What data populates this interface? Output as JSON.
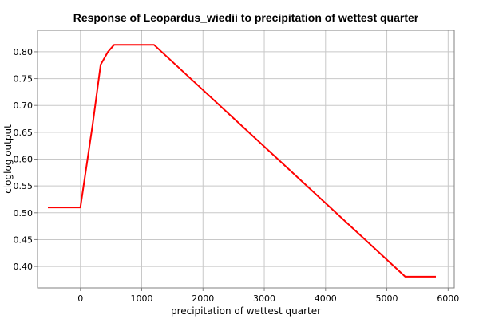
{
  "chart_data": {
    "type": "line",
    "title": "Response of Leopardus_wiedii to precipitation of wettest quarter",
    "xlabel": "precipitation of wettest quarter",
    "ylabel": "cloglog output",
    "xlim": [
      -700,
      6100
    ],
    "ylim": [
      0.36,
      0.84
    ],
    "xticks": [
      0,
      1000,
      2000,
      3000,
      4000,
      5000,
      6000
    ],
    "xtick_labels": [
      "0",
      "1000",
      "2000",
      "3000",
      "4000",
      "5000",
      "6000"
    ],
    "yticks": [
      0.4,
      0.45,
      0.5,
      0.55,
      0.6,
      0.65,
      0.7,
      0.75,
      0.8
    ],
    "ytick_labels": [
      "0.40",
      "0.45",
      "0.50",
      "0.55",
      "0.60",
      "0.65",
      "0.70",
      "0.75",
      "0.80"
    ],
    "grid": true,
    "legend": "none",
    "series": [
      {
        "color": "#ff0000",
        "x": [
          -530,
          0,
          200,
          330,
          450,
          550,
          1200,
          5300,
          5800
        ],
        "y": [
          0.51,
          0.51,
          0.665,
          0.776,
          0.8,
          0.813,
          0.813,
          0.381,
          0.381
        ]
      }
    ]
  }
}
